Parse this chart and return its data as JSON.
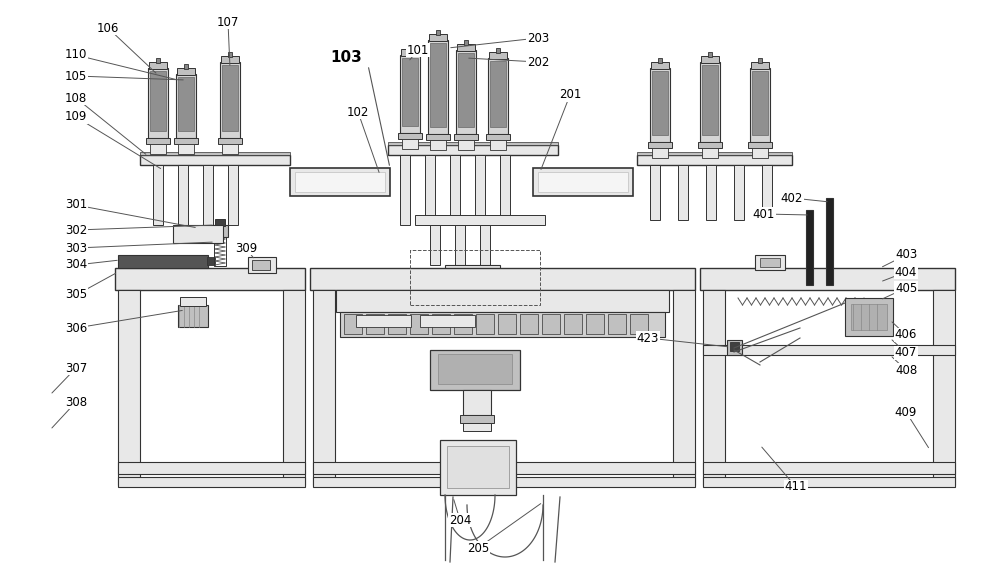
{
  "bg_color": "#ffffff",
  "lc": "#555555",
  "dk": "#333333",
  "fg": "#e8e8e8",
  "mg": "#c0c0c0",
  "dg": "#888888",
  "figsize": [
    10.0,
    5.85
  ],
  "dpi": 100
}
